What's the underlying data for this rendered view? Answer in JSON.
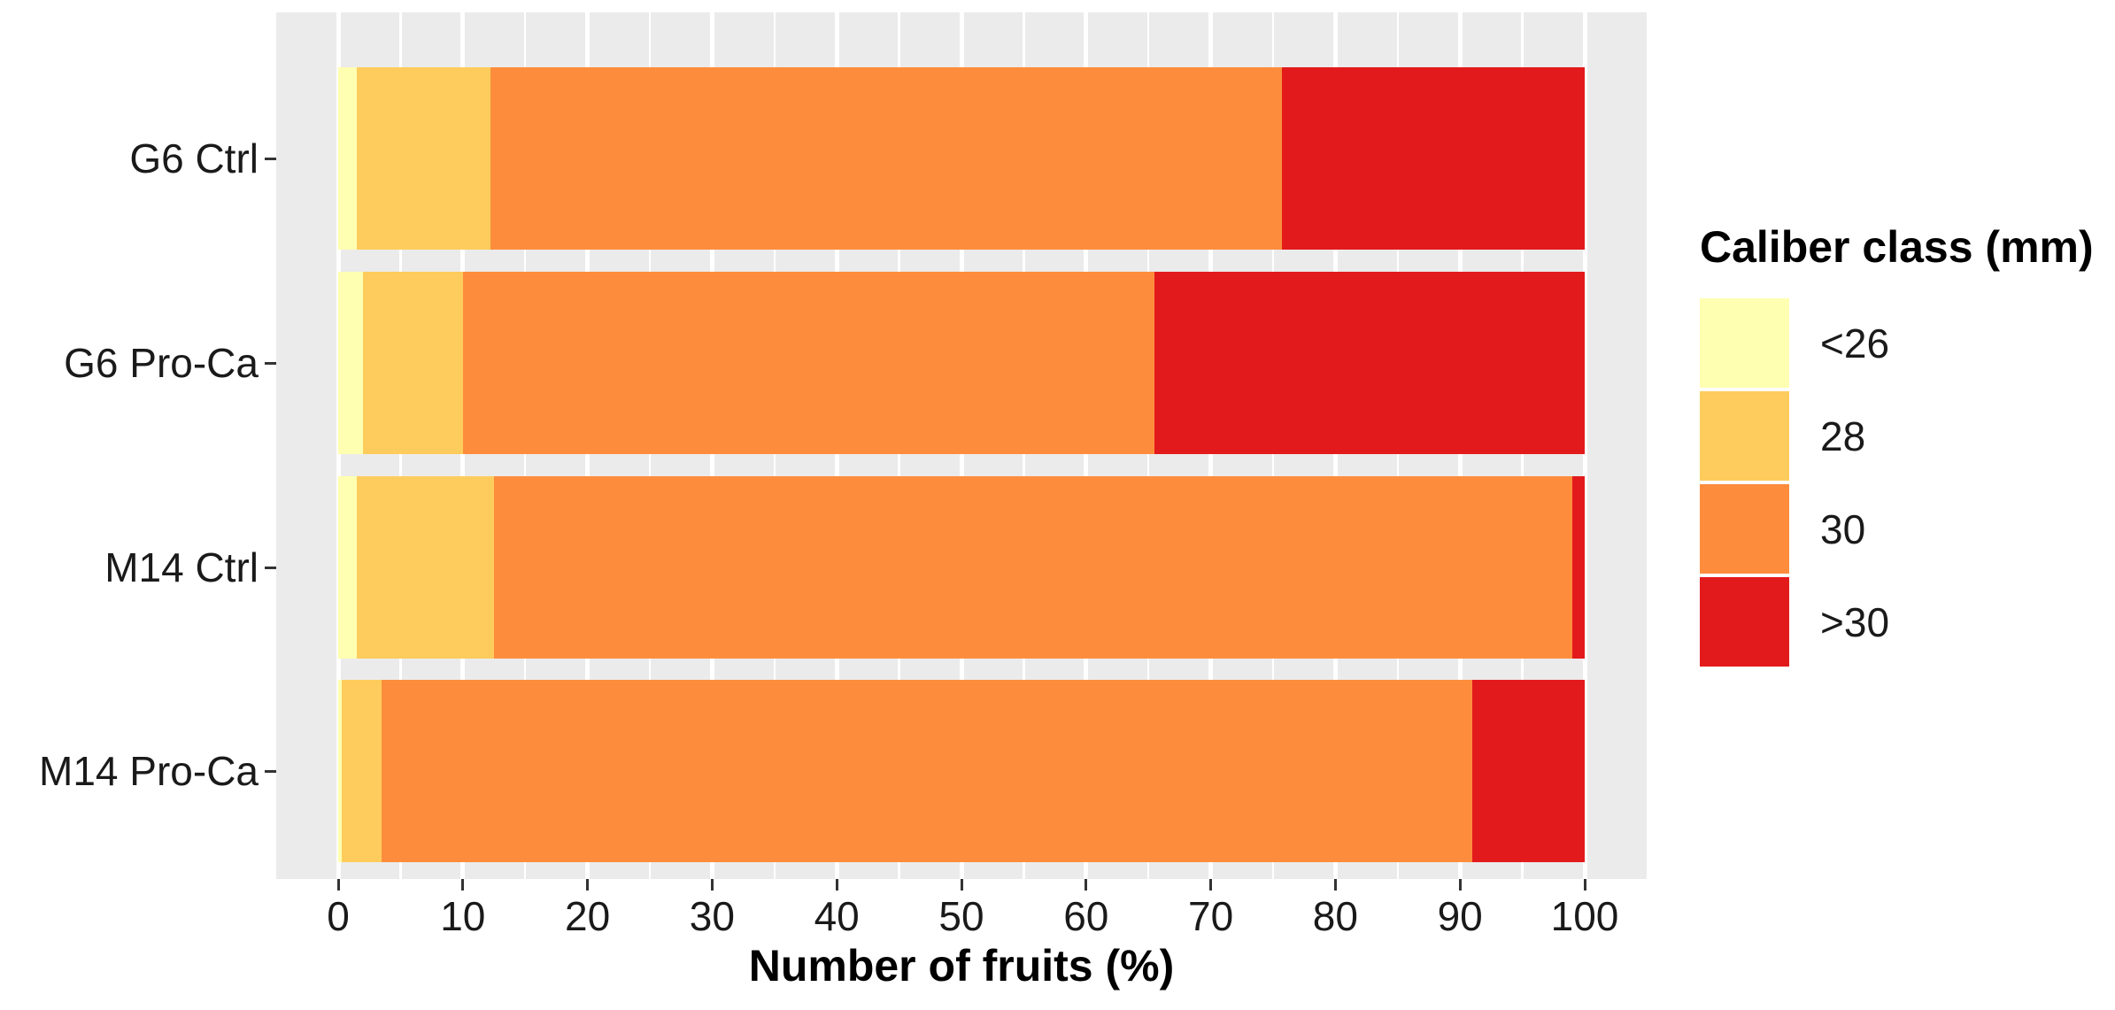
{
  "chart_data": {
    "type": "bar",
    "orientation": "horizontal",
    "stacked": true,
    "stack_total": 100,
    "categories": [
      "G6 Ctrl",
      "G6 Pro-Ca",
      "M14 Ctrl",
      "M14 Pro-Ca"
    ],
    "series": [
      {
        "name": "<26",
        "color": "#FFFFB2",
        "values": [
          1.5,
          2.0,
          1.5,
          0.3
        ]
      },
      {
        "name": "28",
        "color": "#FECC5C",
        "values": [
          10.7,
          8.0,
          11.0,
          3.2
        ]
      },
      {
        "name": "30",
        "color": "#FD8D3C",
        "values": [
          63.5,
          55.5,
          86.5,
          87.5
        ]
      },
      {
        "name": ">30",
        "color": "#E31A1C",
        "values": [
          24.3,
          34.5,
          1.0,
          9.0
        ]
      }
    ],
    "xlabel": "Number of fruits (%)",
    "ylabel": "",
    "xlim": [
      0,
      100
    ],
    "x_major_ticks": [
      0,
      10,
      20,
      30,
      40,
      50,
      60,
      70,
      80,
      90,
      100
    ],
    "x_minor_ticks": [
      5,
      15,
      25,
      35,
      45,
      55,
      65,
      75,
      85,
      95
    ],
    "grid": "on",
    "panel_background": "#EBEBEB",
    "gridline_color": "#ffffff",
    "legend": {
      "title": "Caliber class (mm)",
      "position": "right",
      "entries": [
        {
          "label": "<26",
          "color": "#FFFFB2"
        },
        {
          "label": "28",
          "color": "#FECC5C"
        },
        {
          "label": "30",
          "color": "#FD8D3C"
        },
        {
          "label": ">30",
          "color": "#E31A1C"
        }
      ]
    }
  }
}
